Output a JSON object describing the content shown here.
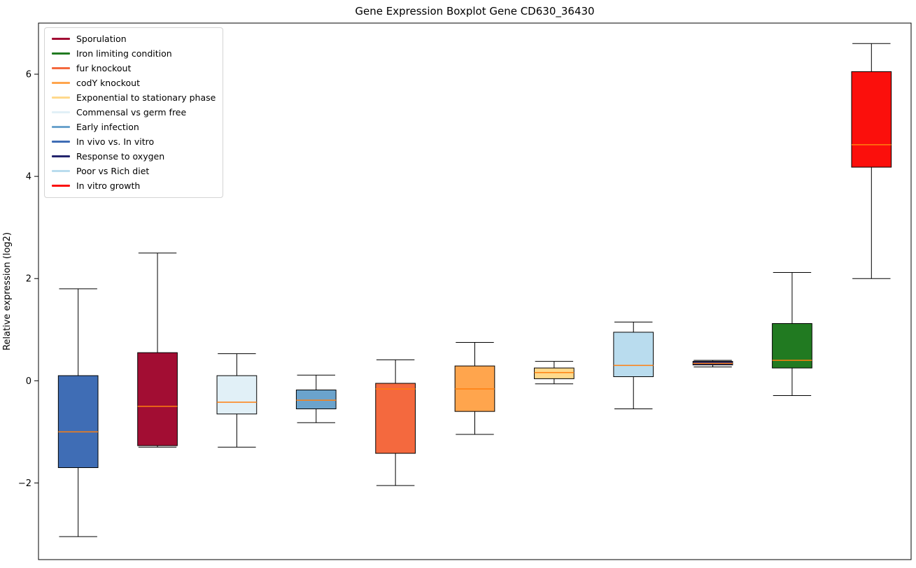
{
  "chart_data": {
    "type": "boxplot",
    "title": "Gene Expression Boxplot Gene CD630_36430",
    "ylabel": "Relative expression (log2)",
    "xlabel": "",
    "ylim": [
      -3.5,
      7.0
    ],
    "yticks": [
      -2,
      0,
      2,
      4,
      6
    ],
    "grid": false,
    "legend_position": "upper left",
    "box_edge_color": "#000000",
    "whisker_color": "#000000",
    "median_color": "#ff7f0e",
    "series": [
      {
        "name": "In vivo vs. In vitro",
        "color": "#3f6db5",
        "whisker_low": -3.05,
        "q1": -1.7,
        "median": -1.0,
        "q3": 0.1,
        "whisker_high": 1.8
      },
      {
        "name": "Sporulation",
        "color": "#a20d33",
        "whisker_low": -1.3,
        "q1": -1.27,
        "median": -0.5,
        "q3": 0.55,
        "whisker_high": 2.5
      },
      {
        "name": "Commensal vs germ free",
        "color": "#e1f0f7",
        "whisker_low": -1.3,
        "q1": -0.65,
        "median": -0.42,
        "q3": 0.1,
        "whisker_high": 0.53
      },
      {
        "name": "Early infection",
        "color": "#6ba3cc",
        "whisker_low": -0.82,
        "q1": -0.55,
        "median": -0.38,
        "q3": -0.18,
        "whisker_high": 0.11
      },
      {
        "name": "fur knockout",
        "color": "#f4693e",
        "whisker_low": -2.05,
        "q1": -1.42,
        "median": -0.16,
        "q3": -0.05,
        "whisker_high": 0.41
      },
      {
        "name": "codY knockout",
        "color": "#ffa54d",
        "whisker_low": -1.05,
        "q1": -0.6,
        "median": -0.16,
        "q3": 0.29,
        "whisker_high": 0.75
      },
      {
        "name": "Exponential to stationary phase",
        "color": "#ffd98c",
        "whisker_low": -0.06,
        "q1": 0.04,
        "median": 0.16,
        "q3": 0.25,
        "whisker_high": 0.38
      },
      {
        "name": "Poor vs Rich diet",
        "color": "#b9dcee",
        "whisker_low": -0.55,
        "q1": 0.08,
        "median": 0.3,
        "q3": 0.95,
        "whisker_high": 1.15
      },
      {
        "name": "Response to oxygen",
        "color": "#23246d",
        "whisker_low": 0.27,
        "q1": 0.31,
        "median": 0.34,
        "q3": 0.38,
        "whisker_high": 0.4
      },
      {
        "name": "Iron limiting condition",
        "color": "#217a21",
        "whisker_low": -0.29,
        "q1": 0.25,
        "median": 0.4,
        "q3": 1.12,
        "whisker_high": 2.12
      },
      {
        "name": "In vitro growth",
        "color": "#fb0f0c",
        "whisker_low": 2.0,
        "q1": 4.18,
        "median": 4.62,
        "q3": 6.05,
        "whisker_high": 6.6
      }
    ],
    "legend": [
      {
        "label": "Sporulation",
        "color": "#a20d33"
      },
      {
        "label": "Iron limiting condition",
        "color": "#217a21"
      },
      {
        "label": "fur knockout",
        "color": "#f4693e"
      },
      {
        "label": "codY knockout",
        "color": "#ffa54d"
      },
      {
        "label": "Exponential to stationary phase",
        "color": "#ffd98c"
      },
      {
        "label": "Commensal vs germ free",
        "color": "#e1f0f7"
      },
      {
        "label": "Early infection",
        "color": "#6ba3cc"
      },
      {
        "label": "In vivo vs. In vitro",
        "color": "#3f6db5"
      },
      {
        "label": "Response to oxygen",
        "color": "#23246d"
      },
      {
        "label": "Poor vs Rich diet",
        "color": "#b9dcee"
      },
      {
        "label": "In vitro growth",
        "color": "#fb0f0c"
      }
    ]
  }
}
